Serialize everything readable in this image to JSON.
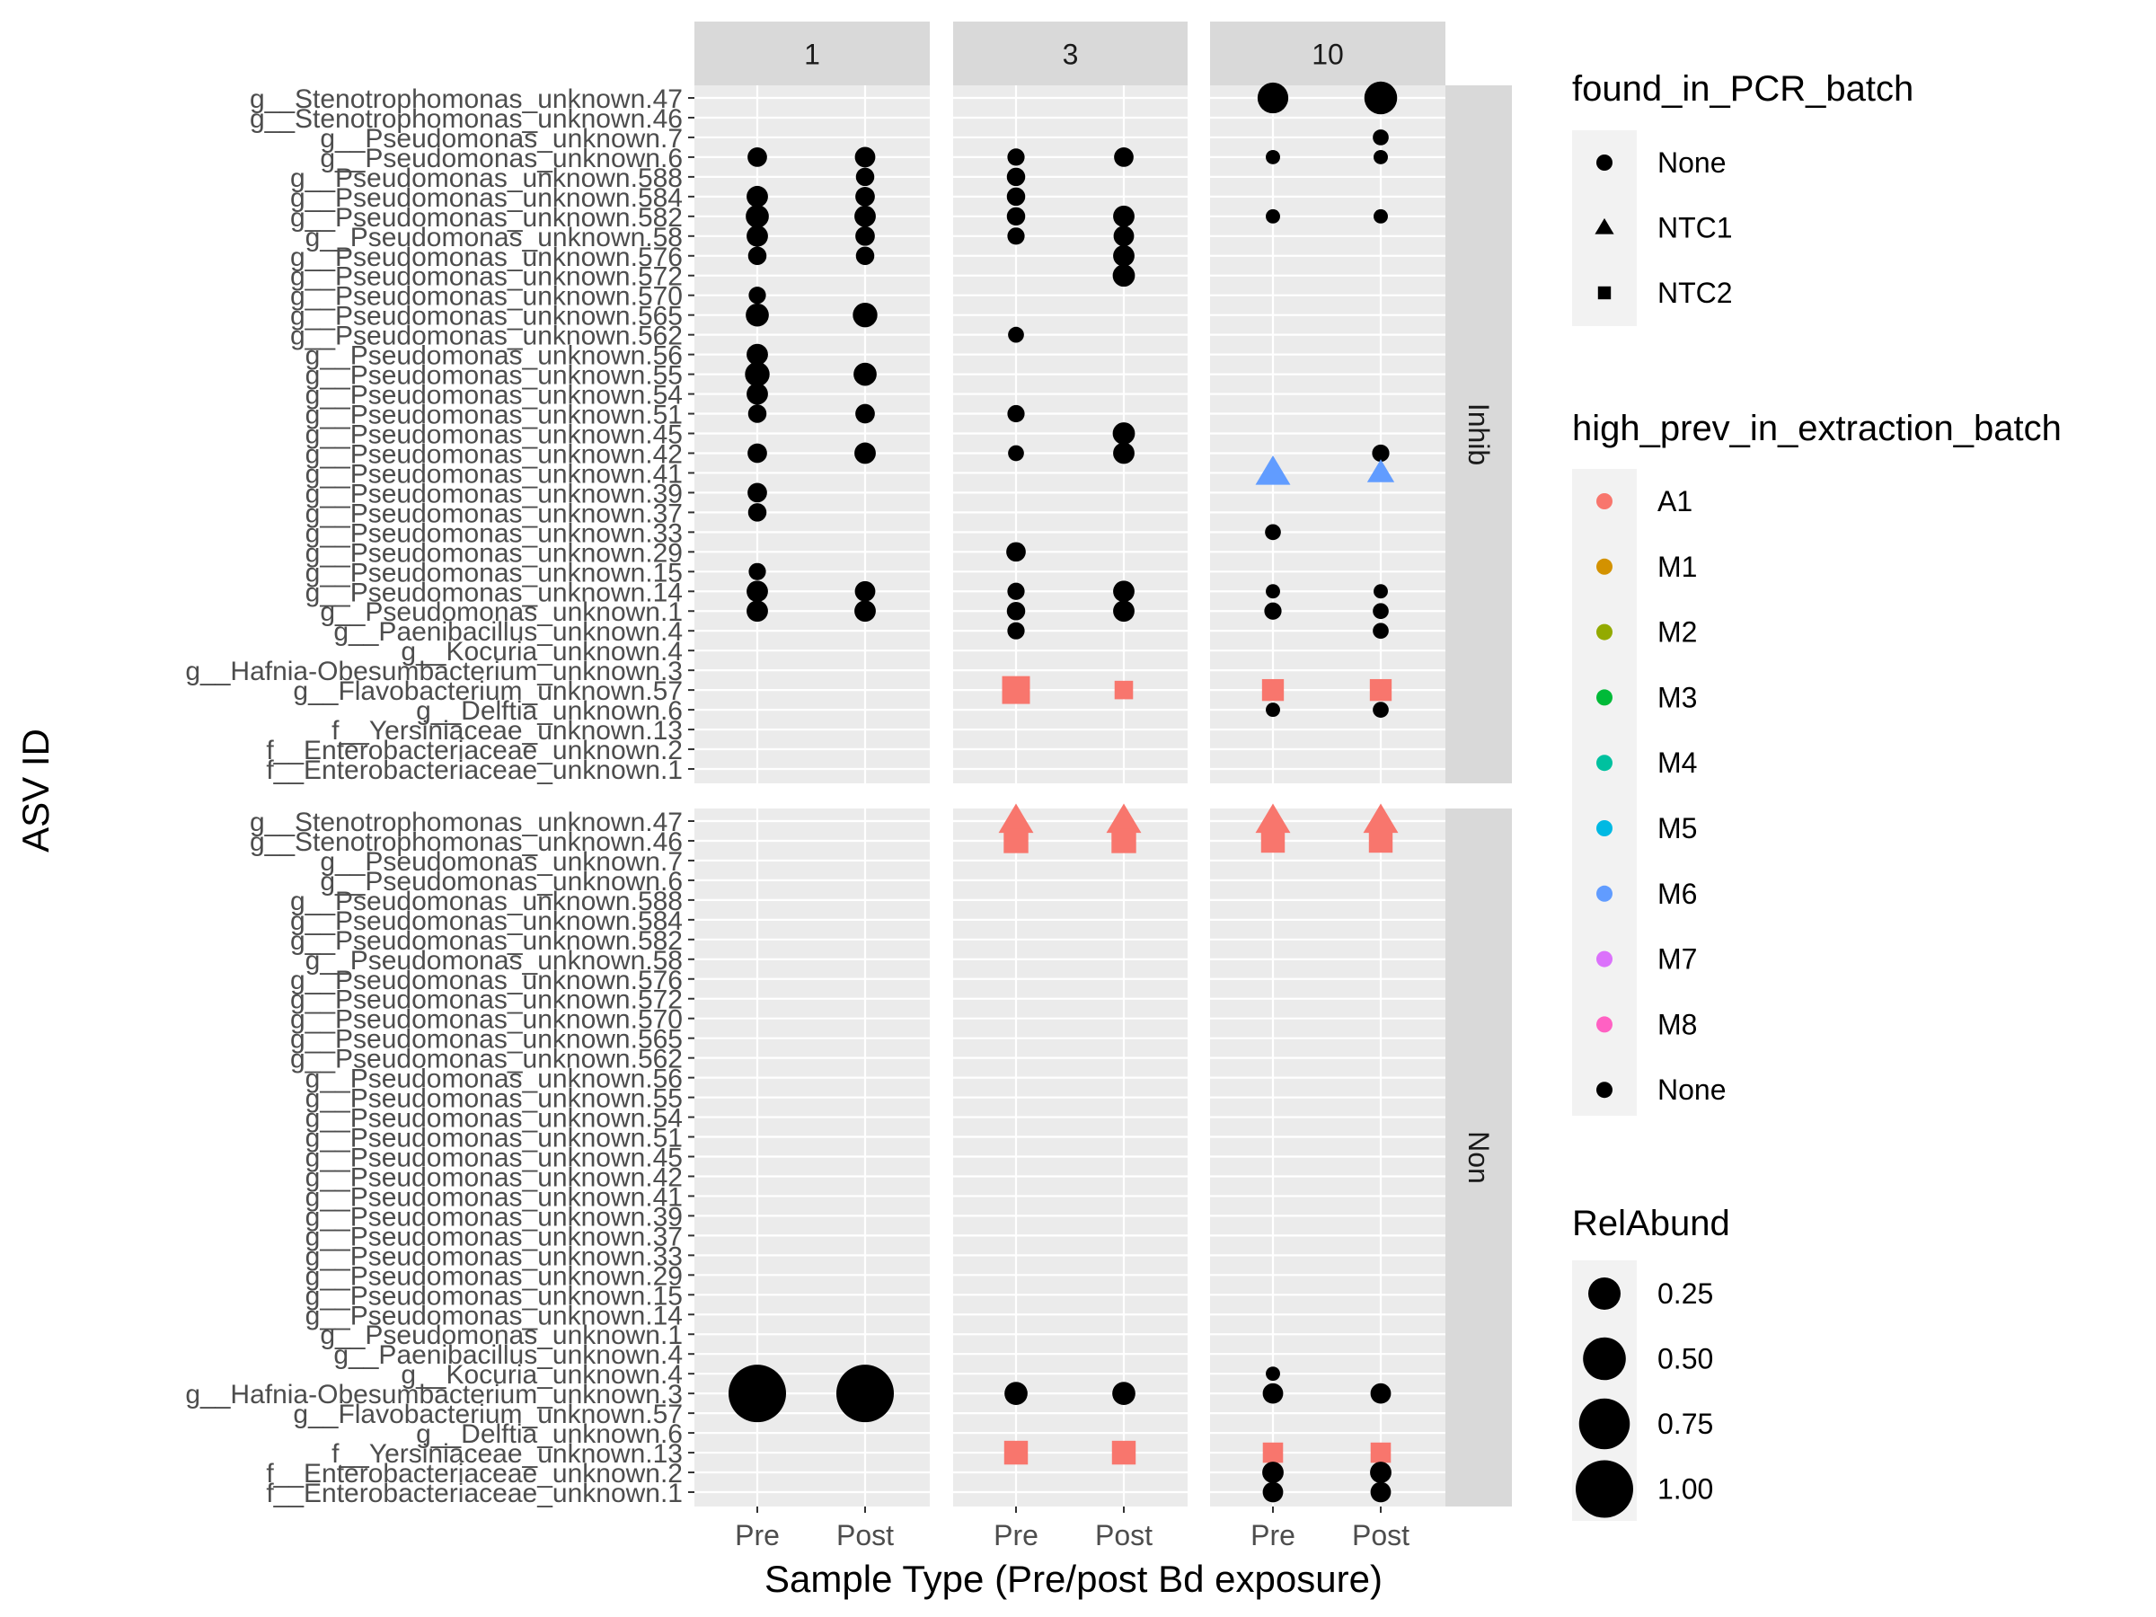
{
  "chart_data": {
    "type": "scatter",
    "xlabel": "Sample Type (Pre/post Bd exposure)",
    "ylabel": "ASV ID",
    "x_categories": [
      "Pre",
      "Post"
    ],
    "col_facets": [
      "1",
      "3",
      "10"
    ],
    "row_facets": [
      "Inhib",
      "Non"
    ],
    "y_categories": [
      "g__Stenotrophomonas_unknown.47",
      "g__Stenotrophomonas_unknown.46",
      "g__Pseudomonas_unknown.7",
      "g__Pseudomonas_unknown.6",
      "g__Pseudomonas_unknown.588",
      "g__Pseudomonas_unknown.584",
      "g__Pseudomonas_unknown.582",
      "g__Pseudomonas_unknown.58",
      "g__Pseudomonas_unknown.576",
      "g__Pseudomonas_unknown.572",
      "g__Pseudomonas_unknown.570",
      "g__Pseudomonas_unknown.565",
      "g__Pseudomonas_unknown.562",
      "g__Pseudomonas_unknown.56",
      "g__Pseudomonas_unknown.55",
      "g__Pseudomonas_unknown.54",
      "g__Pseudomonas_unknown.51",
      "g__Pseudomonas_unknown.45",
      "g__Pseudomonas_unknown.42",
      "g__Pseudomonas_unknown.41",
      "g__Pseudomonas_unknown.39",
      "g__Pseudomonas_unknown.37",
      "g__Pseudomonas_unknown.33",
      "g__Pseudomonas_unknown.29",
      "g__Pseudomonas_unknown.15",
      "g__Pseudomonas_unknown.14",
      "g__Pseudomonas_unknown.1",
      "g__Paenibacillus_unknown.4",
      "g__Kocuria_unknown.4",
      "g__Hafnia-Obesumbacterium_unknown.3",
      "g__Flavobacterium_unknown.57",
      "g__Delftia_unknown.6",
      "f__Yersiniaceae_unknown.13",
      "f__Enterobacteriaceae_unknown.2",
      "f__Enterobacteriaceae_unknown.1"
    ],
    "legends": [
      {
        "title": "found_in_PCR_batch",
        "kind": "shape",
        "items": [
          {
            "label": "None",
            "shape": "circle"
          },
          {
            "label": "NTC1",
            "shape": "triangle"
          },
          {
            "label": "NTC2",
            "shape": "square"
          }
        ]
      },
      {
        "title": "high_prev_in_extraction_batch",
        "kind": "color",
        "items": [
          {
            "label": "A1",
            "color": "#F8766D"
          },
          {
            "label": "M1",
            "color": "#D39200"
          },
          {
            "label": "M2",
            "color": "#93AA00"
          },
          {
            "label": "M3",
            "color": "#00BA38"
          },
          {
            "label": "M4",
            "color": "#00C19F"
          },
          {
            "label": "M5",
            "color": "#00B9E3"
          },
          {
            "label": "M6",
            "color": "#619CFF"
          },
          {
            "label": "M7",
            "color": "#DB72FB"
          },
          {
            "label": "M8",
            "color": "#FF61C3"
          },
          {
            "label": "None",
            "color": "#000000"
          }
        ]
      },
      {
        "title": "RelAbund",
        "kind": "size",
        "items": [
          {
            "label": "0.25",
            "value": 0.25
          },
          {
            "label": "0.50",
            "value": 0.5
          },
          {
            "label": "0.75",
            "value": 0.75
          },
          {
            "label": "1.00",
            "value": 1.0
          }
        ]
      }
    ],
    "points": [
      {
        "row": "Inhib",
        "col": "1",
        "x": "Pre",
        "asv": 3,
        "v": 0.06,
        "shape": "circle",
        "color": "None"
      },
      {
        "row": "Inhib",
        "col": "1",
        "x": "Pre",
        "asv": 5,
        "v": 0.08,
        "shape": "circle",
        "color": "None"
      },
      {
        "row": "Inhib",
        "col": "1",
        "x": "Pre",
        "asv": 6,
        "v": 0.1,
        "shape": "circle",
        "color": "None"
      },
      {
        "row": "Inhib",
        "col": "1",
        "x": "Pre",
        "asv": 7,
        "v": 0.08,
        "shape": "circle",
        "color": "None"
      },
      {
        "row": "Inhib",
        "col": "1",
        "x": "Pre",
        "asv": 8,
        "v": 0.05,
        "shape": "circle",
        "color": "None"
      },
      {
        "row": "Inhib",
        "col": "1",
        "x": "Pre",
        "asv": 10,
        "v": 0.04,
        "shape": "circle",
        "color": "None"
      },
      {
        "row": "Inhib",
        "col": "1",
        "x": "Pre",
        "asv": 11,
        "v": 0.1,
        "shape": "circle",
        "color": "None"
      },
      {
        "row": "Inhib",
        "col": "1",
        "x": "Pre",
        "asv": 13,
        "v": 0.08,
        "shape": "circle",
        "color": "None"
      },
      {
        "row": "Inhib",
        "col": "1",
        "x": "Pre",
        "asv": 14,
        "v": 0.12,
        "shape": "circle",
        "color": "None"
      },
      {
        "row": "Inhib",
        "col": "1",
        "x": "Pre",
        "asv": 15,
        "v": 0.08,
        "shape": "circle",
        "color": "None"
      },
      {
        "row": "Inhib",
        "col": "1",
        "x": "Pre",
        "asv": 16,
        "v": 0.05,
        "shape": "circle",
        "color": "None"
      },
      {
        "row": "Inhib",
        "col": "1",
        "x": "Pre",
        "asv": 18,
        "v": 0.06,
        "shape": "circle",
        "color": "None"
      },
      {
        "row": "Inhib",
        "col": "1",
        "x": "Pre",
        "asv": 20,
        "v": 0.06,
        "shape": "circle",
        "color": "None"
      },
      {
        "row": "Inhib",
        "col": "1",
        "x": "Pre",
        "asv": 21,
        "v": 0.05,
        "shape": "circle",
        "color": "None"
      },
      {
        "row": "Inhib",
        "col": "1",
        "x": "Pre",
        "asv": 24,
        "v": 0.04,
        "shape": "circle",
        "color": "None"
      },
      {
        "row": "Inhib",
        "col": "1",
        "x": "Pre",
        "asv": 25,
        "v": 0.08,
        "shape": "circle",
        "color": "None"
      },
      {
        "row": "Inhib",
        "col": "1",
        "x": "Pre",
        "asv": 26,
        "v": 0.08,
        "shape": "circle",
        "color": "None"
      },
      {
        "row": "Inhib",
        "col": "1",
        "x": "Post",
        "asv": 3,
        "v": 0.07,
        "shape": "circle",
        "color": "None"
      },
      {
        "row": "Inhib",
        "col": "1",
        "x": "Post",
        "asv": 4,
        "v": 0.05,
        "shape": "circle",
        "color": "None"
      },
      {
        "row": "Inhib",
        "col": "1",
        "x": "Post",
        "asv": 5,
        "v": 0.06,
        "shape": "circle",
        "color": "None"
      },
      {
        "row": "Inhib",
        "col": "1",
        "x": "Post",
        "asv": 6,
        "v": 0.08,
        "shape": "circle",
        "color": "None"
      },
      {
        "row": "Inhib",
        "col": "1",
        "x": "Post",
        "asv": 7,
        "v": 0.06,
        "shape": "circle",
        "color": "None"
      },
      {
        "row": "Inhib",
        "col": "1",
        "x": "Post",
        "asv": 8,
        "v": 0.05,
        "shape": "circle",
        "color": "None"
      },
      {
        "row": "Inhib",
        "col": "1",
        "x": "Post",
        "asv": 11,
        "v": 0.12,
        "shape": "circle",
        "color": "None"
      },
      {
        "row": "Inhib",
        "col": "1",
        "x": "Post",
        "asv": 14,
        "v": 0.1,
        "shape": "circle",
        "color": "None"
      },
      {
        "row": "Inhib",
        "col": "1",
        "x": "Post",
        "asv": 16,
        "v": 0.06,
        "shape": "circle",
        "color": "None"
      },
      {
        "row": "Inhib",
        "col": "1",
        "x": "Post",
        "asv": 18,
        "v": 0.08,
        "shape": "circle",
        "color": "None"
      },
      {
        "row": "Inhib",
        "col": "1",
        "x": "Post",
        "asv": 25,
        "v": 0.07,
        "shape": "circle",
        "color": "None"
      },
      {
        "row": "Inhib",
        "col": "1",
        "x": "Post",
        "asv": 26,
        "v": 0.08,
        "shape": "circle",
        "color": "None"
      },
      {
        "row": "Inhib",
        "col": "3",
        "x": "Pre",
        "asv": 3,
        "v": 0.04,
        "shape": "circle",
        "color": "None"
      },
      {
        "row": "Inhib",
        "col": "3",
        "x": "Pre",
        "asv": 4,
        "v": 0.05,
        "shape": "circle",
        "color": "None"
      },
      {
        "row": "Inhib",
        "col": "3",
        "x": "Pre",
        "asv": 5,
        "v": 0.05,
        "shape": "circle",
        "color": "None"
      },
      {
        "row": "Inhib",
        "col": "3",
        "x": "Pre",
        "asv": 6,
        "v": 0.05,
        "shape": "circle",
        "color": "None"
      },
      {
        "row": "Inhib",
        "col": "3",
        "x": "Pre",
        "asv": 7,
        "v": 0.04,
        "shape": "circle",
        "color": "None"
      },
      {
        "row": "Inhib",
        "col": "3",
        "x": "Pre",
        "asv": 12,
        "v": 0.03,
        "shape": "circle",
        "color": "None"
      },
      {
        "row": "Inhib",
        "col": "3",
        "x": "Pre",
        "asv": 16,
        "v": 0.04,
        "shape": "circle",
        "color": "None"
      },
      {
        "row": "Inhib",
        "col": "3",
        "x": "Pre",
        "asv": 18,
        "v": 0.03,
        "shape": "circle",
        "color": "None"
      },
      {
        "row": "Inhib",
        "col": "3",
        "x": "Pre",
        "asv": 23,
        "v": 0.06,
        "shape": "circle",
        "color": "None"
      },
      {
        "row": "Inhib",
        "col": "3",
        "x": "Pre",
        "asv": 25,
        "v": 0.04,
        "shape": "circle",
        "color": "None"
      },
      {
        "row": "Inhib",
        "col": "3",
        "x": "Pre",
        "asv": 26,
        "v": 0.05,
        "shape": "circle",
        "color": "None"
      },
      {
        "row": "Inhib",
        "col": "3",
        "x": "Pre",
        "asv": 27,
        "v": 0.04,
        "shape": "circle",
        "color": "None"
      },
      {
        "row": "Inhib",
        "col": "3",
        "x": "Pre",
        "asv": 30,
        "v": 0.3,
        "shape": "square",
        "color": "A1"
      },
      {
        "row": "Inhib",
        "col": "3",
        "x": "Post",
        "asv": 3,
        "v": 0.06,
        "shape": "circle",
        "color": "None"
      },
      {
        "row": "Inhib",
        "col": "3",
        "x": "Post",
        "asv": 6,
        "v": 0.08,
        "shape": "circle",
        "color": "None"
      },
      {
        "row": "Inhib",
        "col": "3",
        "x": "Post",
        "asv": 7,
        "v": 0.07,
        "shape": "circle",
        "color": "None"
      },
      {
        "row": "Inhib",
        "col": "3",
        "x": "Post",
        "asv": 8,
        "v": 0.08,
        "shape": "circle",
        "color": "None"
      },
      {
        "row": "Inhib",
        "col": "3",
        "x": "Post",
        "asv": 9,
        "v": 0.09,
        "shape": "circle",
        "color": "None"
      },
      {
        "row": "Inhib",
        "col": "3",
        "x": "Post",
        "asv": 17,
        "v": 0.09,
        "shape": "circle",
        "color": "None"
      },
      {
        "row": "Inhib",
        "col": "3",
        "x": "Post",
        "asv": 18,
        "v": 0.08,
        "shape": "circle",
        "color": "None"
      },
      {
        "row": "Inhib",
        "col": "3",
        "x": "Post",
        "asv": 25,
        "v": 0.08,
        "shape": "circle",
        "color": "None"
      },
      {
        "row": "Inhib",
        "col": "3",
        "x": "Post",
        "asv": 26,
        "v": 0.08,
        "shape": "circle",
        "color": "None"
      },
      {
        "row": "Inhib",
        "col": "3",
        "x": "Post",
        "asv": 30,
        "v": 0.1,
        "shape": "square",
        "color": "A1"
      },
      {
        "row": "Inhib",
        "col": "10",
        "x": "Pre",
        "asv": 0,
        "v": 0.22,
        "shape": "circle",
        "color": "None"
      },
      {
        "row": "Inhib",
        "col": "10",
        "x": "Pre",
        "asv": 3,
        "v": 0.02,
        "shape": "circle",
        "color": "None"
      },
      {
        "row": "Inhib",
        "col": "10",
        "x": "Pre",
        "asv": 6,
        "v": 0.02,
        "shape": "circle",
        "color": "None"
      },
      {
        "row": "Inhib",
        "col": "10",
        "x": "Pre",
        "asv": 19,
        "v": 0.2,
        "shape": "triangle",
        "color": "M6"
      },
      {
        "row": "Inhib",
        "col": "10",
        "x": "Pre",
        "asv": 22,
        "v": 0.03,
        "shape": "circle",
        "color": "None"
      },
      {
        "row": "Inhib",
        "col": "10",
        "x": "Pre",
        "asv": 25,
        "v": 0.02,
        "shape": "circle",
        "color": "None"
      },
      {
        "row": "Inhib",
        "col": "10",
        "x": "Pre",
        "asv": 26,
        "v": 0.04,
        "shape": "circle",
        "color": "None"
      },
      {
        "row": "Inhib",
        "col": "10",
        "x": "Pre",
        "asv": 30,
        "v": 0.16,
        "shape": "square",
        "color": "A1"
      },
      {
        "row": "Inhib",
        "col": "10",
        "x": "Pre",
        "asv": 31,
        "v": 0.02,
        "shape": "circle",
        "color": "None"
      },
      {
        "row": "Inhib",
        "col": "10",
        "x": "Post",
        "asv": 0,
        "v": 0.26,
        "shape": "circle",
        "color": "None"
      },
      {
        "row": "Inhib",
        "col": "10",
        "x": "Post",
        "asv": 2,
        "v": 0.03,
        "shape": "circle",
        "color": "None"
      },
      {
        "row": "Inhib",
        "col": "10",
        "x": "Post",
        "asv": 3,
        "v": 0.02,
        "shape": "circle",
        "color": "None"
      },
      {
        "row": "Inhib",
        "col": "10",
        "x": "Post",
        "asv": 6,
        "v": 0.02,
        "shape": "circle",
        "color": "None"
      },
      {
        "row": "Inhib",
        "col": "10",
        "x": "Post",
        "asv": 18,
        "v": 0.04,
        "shape": "circle",
        "color": "None"
      },
      {
        "row": "Inhib",
        "col": "10",
        "x": "Post",
        "asv": 19,
        "v": 0.1,
        "shape": "triangle",
        "color": "M6"
      },
      {
        "row": "Inhib",
        "col": "10",
        "x": "Post",
        "asv": 25,
        "v": 0.02,
        "shape": "circle",
        "color": "None"
      },
      {
        "row": "Inhib",
        "col": "10",
        "x": "Post",
        "asv": 26,
        "v": 0.03,
        "shape": "circle",
        "color": "None"
      },
      {
        "row": "Inhib",
        "col": "10",
        "x": "Post",
        "asv": 27,
        "v": 0.03,
        "shape": "circle",
        "color": "None"
      },
      {
        "row": "Inhib",
        "col": "10",
        "x": "Post",
        "asv": 30,
        "v": 0.16,
        "shape": "square",
        "color": "A1"
      },
      {
        "row": "Inhib",
        "col": "10",
        "x": "Post",
        "asv": 31,
        "v": 0.03,
        "shape": "circle",
        "color": "None"
      },
      {
        "row": "Non",
        "col": "1",
        "x": "Pre",
        "asv": 29,
        "v": 1.0,
        "shape": "circle",
        "color": "None"
      },
      {
        "row": "Non",
        "col": "1",
        "x": "Post",
        "asv": 29,
        "v": 1.0,
        "shape": "circle",
        "color": "None"
      },
      {
        "row": "Non",
        "col": "3",
        "x": "Pre",
        "asv": 0,
        "v": 0.2,
        "shape": "triangle",
        "color": "A1"
      },
      {
        "row": "Non",
        "col": "3",
        "x": "Pre",
        "asv": 1,
        "v": 0.22,
        "shape": "square",
        "color": "A1"
      },
      {
        "row": "Non",
        "col": "3",
        "x": "Pre",
        "asv": 29,
        "v": 0.1,
        "shape": "circle",
        "color": "None"
      },
      {
        "row": "Non",
        "col": "3",
        "x": "Pre",
        "asv": 32,
        "v": 0.2,
        "shape": "square",
        "color": "A1"
      },
      {
        "row": "Non",
        "col": "3",
        "x": "Post",
        "asv": 0,
        "v": 0.2,
        "shape": "triangle",
        "color": "A1"
      },
      {
        "row": "Non",
        "col": "3",
        "x": "Post",
        "asv": 1,
        "v": 0.22,
        "shape": "square",
        "color": "A1"
      },
      {
        "row": "Non",
        "col": "3",
        "x": "Post",
        "asv": 29,
        "v": 0.1,
        "shape": "circle",
        "color": "None"
      },
      {
        "row": "Non",
        "col": "3",
        "x": "Post",
        "asv": 32,
        "v": 0.2,
        "shape": "square",
        "color": "A1"
      },
      {
        "row": "Non",
        "col": "10",
        "x": "Pre",
        "asv": 0,
        "v": 0.2,
        "shape": "triangle",
        "color": "A1"
      },
      {
        "row": "Non",
        "col": "10",
        "x": "Pre",
        "asv": 1,
        "v": 0.2,
        "shape": "square",
        "color": "A1"
      },
      {
        "row": "Non",
        "col": "10",
        "x": "Pre",
        "asv": 28,
        "v": 0.02,
        "shape": "circle",
        "color": "None"
      },
      {
        "row": "Non",
        "col": "10",
        "x": "Pre",
        "asv": 29,
        "v": 0.07,
        "shape": "circle",
        "color": "None"
      },
      {
        "row": "Non",
        "col": "10",
        "x": "Pre",
        "asv": 32,
        "v": 0.13,
        "shape": "square",
        "color": "A1"
      },
      {
        "row": "Non",
        "col": "10",
        "x": "Pre",
        "asv": 33,
        "v": 0.08,
        "shape": "circle",
        "color": "None"
      },
      {
        "row": "Non",
        "col": "10",
        "x": "Pre",
        "asv": 34,
        "v": 0.07,
        "shape": "circle",
        "color": "None"
      },
      {
        "row": "Non",
        "col": "10",
        "x": "Post",
        "asv": 0,
        "v": 0.2,
        "shape": "triangle",
        "color": "A1"
      },
      {
        "row": "Non",
        "col": "10",
        "x": "Post",
        "asv": 1,
        "v": 0.2,
        "shape": "square",
        "color": "A1"
      },
      {
        "row": "Non",
        "col": "10",
        "x": "Post",
        "asv": 29,
        "v": 0.07,
        "shape": "circle",
        "color": "None"
      },
      {
        "row": "Non",
        "col": "10",
        "x": "Post",
        "asv": 32,
        "v": 0.13,
        "shape": "square",
        "color": "A1"
      },
      {
        "row": "Non",
        "col": "10",
        "x": "Post",
        "asv": 33,
        "v": 0.08,
        "shape": "circle",
        "color": "None"
      },
      {
        "row": "Non",
        "col": "10",
        "x": "Post",
        "asv": 34,
        "v": 0.07,
        "shape": "circle",
        "color": "None"
      }
    ]
  }
}
